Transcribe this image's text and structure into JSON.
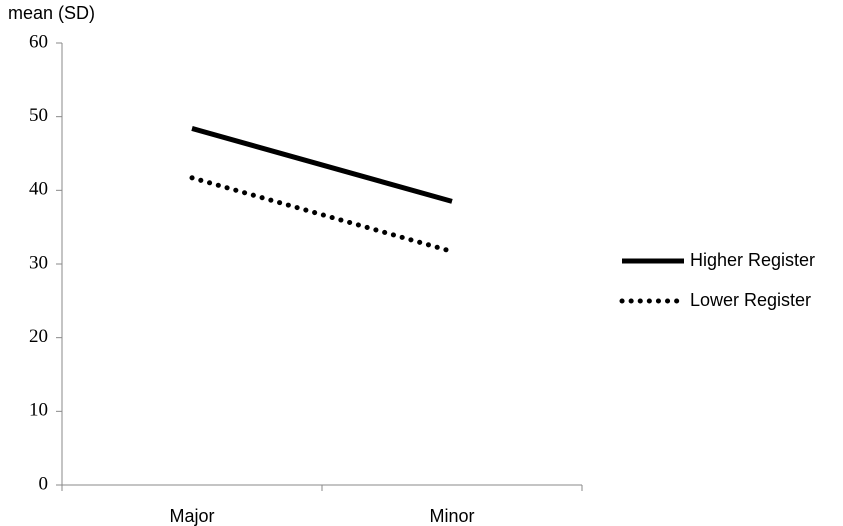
{
  "chart_data": {
    "type": "line",
    "y_label": "mean (SD)",
    "categories": [
      "Major",
      "Minor"
    ],
    "series": [
      {
        "name": "Higher Register",
        "color": "#000000",
        "line_style": "solid",
        "values": [
          48.4,
          38.5
        ]
      },
      {
        "name": "Lower Register",
        "color": "#000000",
        "line_style": "dotted",
        "values": [
          41.7,
          31.7
        ]
      }
    ],
    "ylim": [
      0,
      60
    ],
    "yticks": [
      0,
      10,
      20,
      30,
      40,
      50,
      60
    ],
    "grid": false,
    "legend": "right"
  }
}
